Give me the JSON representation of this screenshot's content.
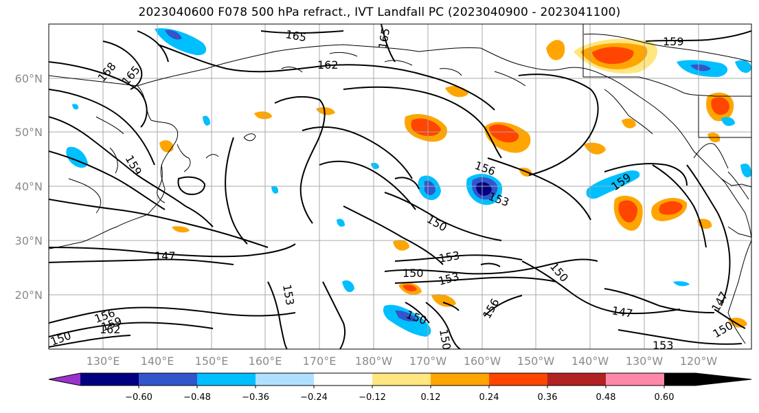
{
  "title": "2023040600 F078 500 hPa refract., IVT Landfall PC (2023040900 - 2023041100)",
  "lat_labels": [
    "60°N",
    "50°N",
    "40°N",
    "30°N",
    "20°N"
  ],
  "lon_labels": [
    "130°E",
    "140°E",
    "150°E",
    "160°E",
    "170°E",
    "180°W",
    "170°W",
    "160°W",
    "150°W",
    "140°W",
    "130°W",
    "120°W"
  ],
  "contour_labels": [
    "165",
    "165",
    "168",
    "165",
    "162",
    "159",
    "159",
    "156",
    "153",
    "150",
    "159",
    "147",
    "153",
    "150",
    "153",
    "150",
    "147",
    "153",
    "150",
    "156",
    "150",
    "147",
    "153",
    "150",
    "156",
    "159",
    "162",
    "150"
  ],
  "colorbar": {
    "tick_labels": [
      "−0.60",
      "−0.48",
      "−0.36",
      "−0.24",
      "−0.12",
      "0.12",
      "0.24",
      "0.36",
      "0.48",
      "0.60"
    ],
    "colors": [
      "#9933cc",
      "#000080",
      "#3355cc",
      "#00bfff",
      "#b0e0ff",
      "#ffffff",
      "#ffe680",
      "#ffa500",
      "#ff4500",
      "#b22222",
      "#ff88aa"
    ]
  }
}
